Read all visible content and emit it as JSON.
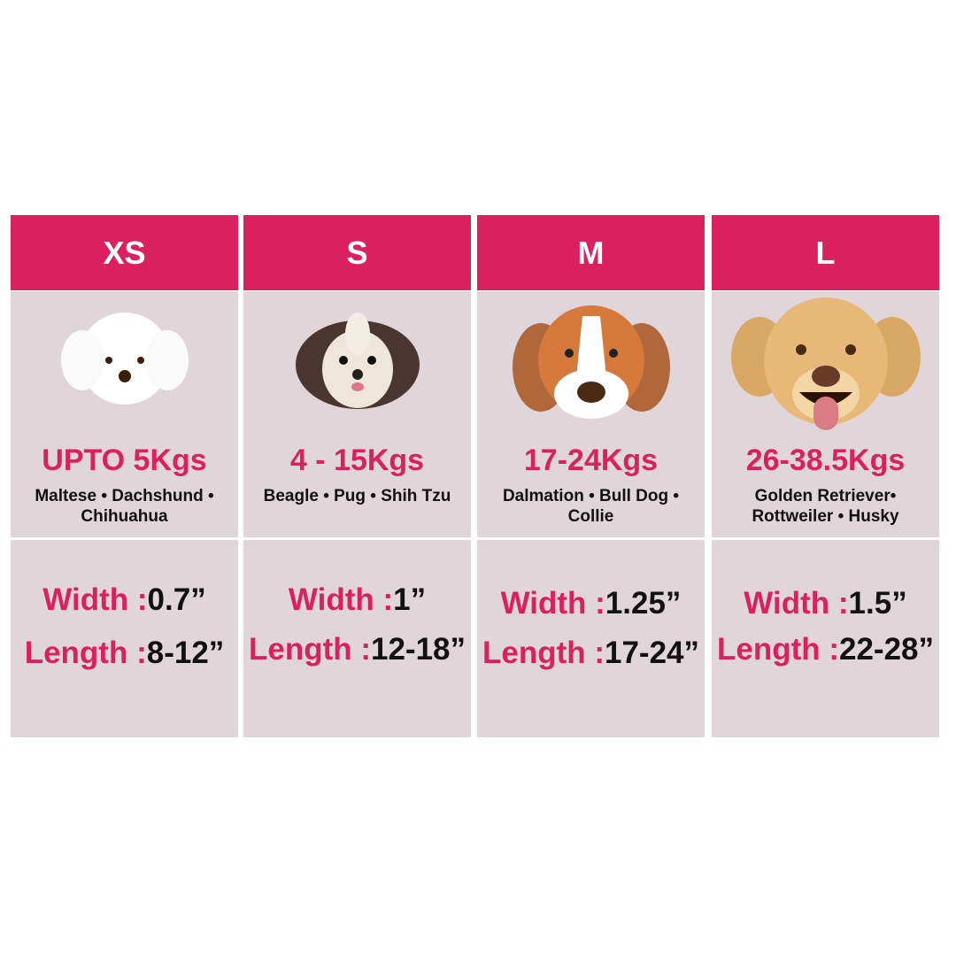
{
  "sizes": [
    {
      "size": "XS",
      "weight": "UPTO 5Kgs",
      "breeds": "Maltese • Dachshund • Chihuahua",
      "width_label": "Width :",
      "width": "0.7”",
      "length_label": "Length :",
      "length": "8-12”",
      "dog": "maltese-icon"
    },
    {
      "size": "S",
      "weight": "4 - 15Kgs",
      "breeds": "Beagle • Pug • Shih Tzu",
      "width_label": "Width :",
      "width": "1”",
      "length_label": "Length :",
      "length": "12-18”",
      "dog": "shih-tzu-icon"
    },
    {
      "size": "M",
      "weight": "17-24Kgs",
      "breeds": "Dalmation • Bull Dog • Collie",
      "width_label": "Width :",
      "width": "1.25”",
      "length_label": "Length :",
      "length": "17-24”",
      "dog": "beagle-icon"
    },
    {
      "size": "L",
      "weight": "26-38.5Kgs",
      "breeds": "Golden Retriever• Rottweiler • Husky",
      "width_label": "Width :",
      "width": "1.5”",
      "length_label": "Length :",
      "length": "22-28”",
      "dog": "golden-retriever-icon"
    }
  ],
  "colors": {
    "accent": "#db2060",
    "panel": "#e0d6da"
  }
}
